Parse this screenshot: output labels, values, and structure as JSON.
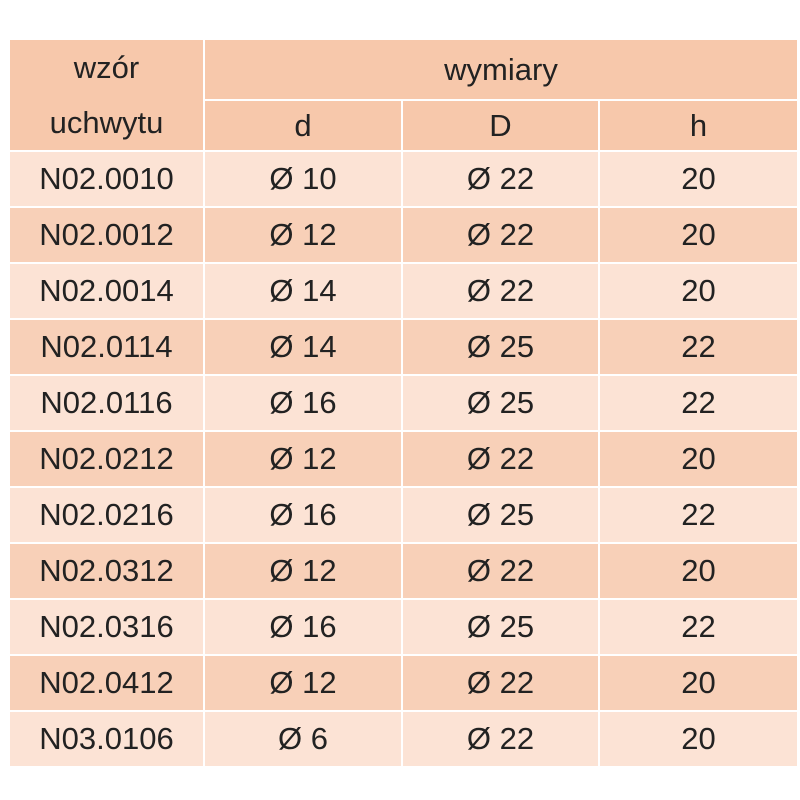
{
  "table": {
    "header": {
      "first_column": [
        "wzór",
        "uchwytu"
      ],
      "group": "wymiary",
      "columns": [
        "d",
        "D",
        "h"
      ]
    },
    "rows": [
      [
        "N02.0010",
        "Ø 10",
        "Ø 22",
        "20"
      ],
      [
        "N02.0012",
        "Ø 12",
        "Ø 22",
        "20"
      ],
      [
        "N02.0014",
        "Ø 14",
        "Ø 22",
        "20"
      ],
      [
        "N02.0114",
        "Ø 14",
        "Ø 25",
        "22"
      ],
      [
        "N02.0116",
        "Ø 16",
        "Ø 25",
        "22"
      ],
      [
        "N02.0212",
        "Ø 12",
        "Ø 22",
        "20"
      ],
      [
        "N02.0216",
        "Ø 16",
        "Ø 25",
        "22"
      ],
      [
        "N02.0312",
        "Ø 12",
        "Ø 22",
        "20"
      ],
      [
        "N02.0316",
        "Ø 16",
        "Ø 25",
        "22"
      ],
      [
        "N02.0412",
        "Ø 12",
        "Ø 22",
        "20"
      ],
      [
        "N03.0106",
        "Ø 6",
        "Ø 22",
        "20"
      ]
    ]
  }
}
